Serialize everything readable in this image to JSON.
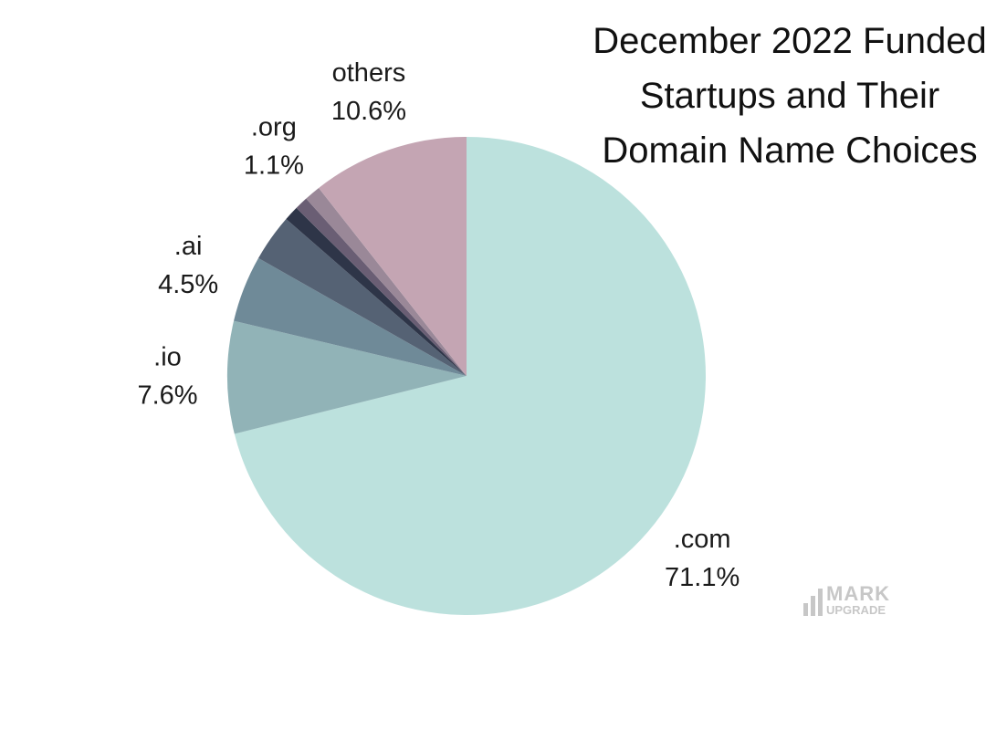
{
  "chart_data": {
    "type": "pie",
    "title": "December 2022 Funded Startups and Their Domain Name Choices",
    "categories": [
      ".com",
      ".io",
      ".ai",
      null,
      null,
      null,
      ".org",
      "others"
    ],
    "values": [
      71.1,
      7.6,
      4.5,
      3.2,
      1.0,
      0.9,
      1.1,
      10.6
    ],
    "value_labels": [
      "71.1%",
      "7.6%",
      "4.5%",
      null,
      null,
      null,
      "1.1%",
      "10.6%"
    ],
    "colors": [
      "#bce1dd",
      "#91b3b7",
      "#6f8a98",
      "#556274",
      "#2e3548",
      "#6a5e74",
      "#9a8898",
      "#c4a5b3"
    ]
  },
  "watermark": {
    "line1": "MARK",
    "line2": "UPGRADE"
  }
}
